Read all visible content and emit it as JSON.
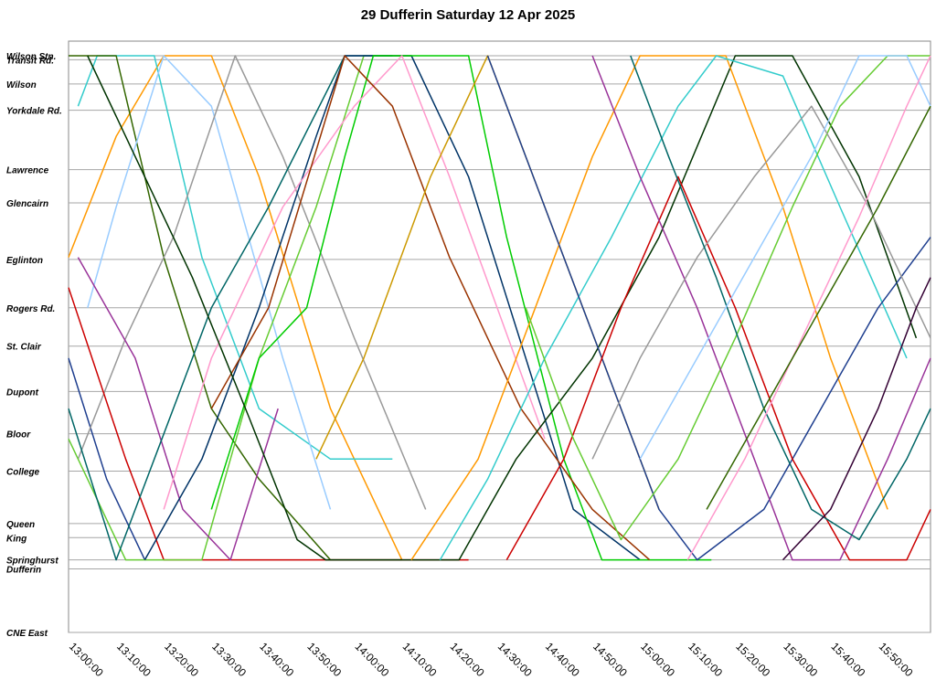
{
  "title": "29 Dufferin Saturday 12 Apr 2025",
  "chart_data": {
    "type": "line",
    "title": "29 Dufferin Saturday 12 Apr 2025",
    "xlabel": "",
    "ylabel": "",
    "x_range_minutes": [
      0,
      181
    ],
    "x_ticks": [
      "13:00:00",
      "13:10:00",
      "13:20:00",
      "13:30:00",
      "13:40:00",
      "13:50:00",
      "14:00:00",
      "14:10:00",
      "14:20:00",
      "14:30:00",
      "14:40:00",
      "14:50:00",
      "15:00:00",
      "15:10:00",
      "15:20:00",
      "15:30:00",
      "15:40:00",
      "15:50:00"
    ],
    "grid": true,
    "stops": [
      {
        "name": "Wilson Stn.",
        "pos": 0.0
      },
      {
        "name": "Transit Rd.",
        "pos": 0.4
      },
      {
        "name": "Wilson",
        "pos": 2.8
      },
      {
        "name": "Yorkdale Rd.",
        "pos": 5.4
      },
      {
        "name": "Lawrence",
        "pos": 11.3
      },
      {
        "name": "Glencairn",
        "pos": 14.6
      },
      {
        "name": "Eglinton",
        "pos": 20.2
      },
      {
        "name": "Rogers Rd.",
        "pos": 25.0
      },
      {
        "name": "St. Clair",
        "pos": 28.8
      },
      {
        "name": "Dupont",
        "pos": 33.3
      },
      {
        "name": "Bloor",
        "pos": 37.5
      },
      {
        "name": "College",
        "pos": 41.2
      },
      {
        "name": "Queen",
        "pos": 46.4
      },
      {
        "name": "King",
        "pos": 47.8
      },
      {
        "name": "Springhurst",
        "pos": 50.0
      },
      {
        "name": "Dufferin",
        "pos": 50.9
      },
      {
        "name": "CNE East",
        "pos": 57.2
      }
    ],
    "series": [
      {
        "color": "#1f3f8f",
        "points": [
          [
            0,
            30
          ],
          [
            8,
            42
          ],
          [
            16,
            50
          ]
        ]
      },
      {
        "color": "#ff9900",
        "points": [
          [
            0,
            20
          ],
          [
            10,
            8
          ],
          [
            20,
            0
          ],
          [
            30,
            0
          ],
          [
            40,
            12
          ],
          [
            55,
            35
          ],
          [
            70,
            50
          ]
        ]
      },
      {
        "color": "#33cccc",
        "points": [
          [
            2,
            5
          ],
          [
            6,
            0
          ],
          [
            18,
            0
          ],
          [
            28,
            20
          ],
          [
            40,
            35
          ],
          [
            55,
            40
          ],
          [
            68,
            40
          ]
        ]
      },
      {
        "color": "#336600",
        "points": [
          [
            0,
            0
          ],
          [
            10,
            0
          ],
          [
            20,
            20
          ],
          [
            30,
            35
          ],
          [
            40,
            42
          ],
          [
            55,
            50
          ],
          [
            70,
            50
          ]
        ]
      },
      {
        "color": "#99ccff",
        "points": [
          [
            4,
            25
          ],
          [
            10,
            15
          ],
          [
            20,
            0
          ],
          [
            30,
            5
          ],
          [
            45,
            30
          ],
          [
            55,
            45
          ]
        ]
      },
      {
        "color": "#999999",
        "points": [
          [
            2,
            40
          ],
          [
            12,
            28
          ],
          [
            22,
            18
          ],
          [
            35,
            0
          ],
          [
            45,
            10
          ],
          [
            60,
            28
          ],
          [
            75,
            45
          ]
        ]
      },
      {
        "color": "#cc0000",
        "points": [
          [
            0,
            23
          ],
          [
            12,
            40
          ],
          [
            20,
            50
          ],
          [
            32,
            50
          ],
          [
            46,
            50
          ],
          [
            68,
            50
          ],
          [
            84,
            50
          ]
        ]
      },
      {
        "color": "#66cc33",
        "points": [
          [
            0,
            38
          ],
          [
            12,
            50
          ],
          [
            28,
            50
          ],
          [
            40,
            30
          ],
          [
            52,
            15
          ],
          [
            62,
            0
          ],
          [
            72,
            0
          ]
        ]
      },
      {
        "color": "#993399",
        "points": [
          [
            2,
            20
          ],
          [
            14,
            30
          ],
          [
            24,
            45
          ],
          [
            34,
            50
          ],
          [
            44,
            35
          ]
        ]
      },
      {
        "color": "#006666",
        "points": [
          [
            0,
            35
          ],
          [
            10,
            50
          ],
          [
            18,
            40
          ],
          [
            30,
            25
          ],
          [
            42,
            15
          ],
          [
            58,
            0
          ],
          [
            68,
            0
          ]
        ]
      },
      {
        "color": "#003366",
        "points": [
          [
            16,
            50
          ],
          [
            28,
            40
          ],
          [
            40,
            25
          ],
          [
            52,
            8
          ],
          [
            58,
            0
          ],
          [
            72,
            0
          ],
          [
            84,
            12
          ],
          [
            96,
            30
          ],
          [
            106,
            45
          ],
          [
            120,
            50
          ]
        ]
      },
      {
        "color": "#00cc00",
        "points": [
          [
            30,
            45
          ],
          [
            40,
            30
          ],
          [
            50,
            25
          ],
          [
            58,
            10
          ],
          [
            64,
            0
          ],
          [
            84,
            0
          ],
          [
            92,
            18
          ],
          [
            104,
            40
          ],
          [
            112,
            50
          ],
          [
            135,
            50
          ]
        ]
      },
      {
        "color": "#ff99cc",
        "points": [
          [
            20,
            45
          ],
          [
            30,
            30
          ],
          [
            45,
            15
          ],
          [
            60,
            5
          ],
          [
            70,
            0
          ],
          [
            80,
            12
          ],
          [
            90,
            25
          ],
          [
            100,
            38
          ]
        ]
      },
      {
        "color": "#993300",
        "points": [
          [
            30,
            35
          ],
          [
            42,
            25
          ],
          [
            58,
            0
          ],
          [
            68,
            5
          ],
          [
            80,
            20
          ],
          [
            95,
            35
          ],
          [
            110,
            45
          ],
          [
            122,
            50
          ]
        ]
      },
      {
        "color": "#cc9900",
        "points": [
          [
            52,
            40
          ],
          [
            62,
            30
          ],
          [
            76,
            12
          ],
          [
            88,
            0
          ],
          [
            100,
            15
          ],
          [
            112,
            30
          ],
          [
            124,
            45
          ]
        ]
      },
      {
        "color": "#003300",
        "points": [
          [
            4,
            0
          ],
          [
            14,
            10
          ],
          [
            26,
            22
          ],
          [
            38,
            36
          ],
          [
            48,
            48
          ],
          [
            54,
            50
          ],
          [
            82,
            50
          ],
          [
            94,
            40
          ],
          [
            110,
            30
          ],
          [
            124,
            18
          ],
          [
            140,
            0
          ],
          [
            152,
            0
          ],
          [
            166,
            12
          ],
          [
            178,
            28
          ]
        ]
      },
      {
        "color": "#ff9900",
        "points": [
          [
            72,
            50
          ],
          [
            86,
            40
          ],
          [
            98,
            25
          ],
          [
            110,
            10
          ],
          [
            120,
            0
          ],
          [
            138,
            0
          ],
          [
            150,
            15
          ],
          [
            160,
            30
          ],
          [
            172,
            45
          ]
        ]
      },
      {
        "color": "#33cccc",
        "points": [
          [
            78,
            50
          ],
          [
            88,
            42
          ],
          [
            100,
            30
          ],
          [
            114,
            18
          ],
          [
            128,
            5
          ],
          [
            136,
            0
          ],
          [
            150,
            2
          ],
          [
            162,
            15
          ],
          [
            176,
            30
          ]
        ]
      },
      {
        "color": "#1f3f8f",
        "points": [
          [
            88,
            0
          ],
          [
            100,
            15
          ],
          [
            112,
            30
          ],
          [
            124,
            45
          ],
          [
            132,
            50
          ],
          [
            146,
            45
          ],
          [
            158,
            35
          ],
          [
            170,
            25
          ],
          [
            181,
            18
          ]
        ]
      },
      {
        "color": "#cc0000",
        "points": [
          [
            92,
            50
          ],
          [
            104,
            40
          ],
          [
            116,
            25
          ],
          [
            128,
            12
          ],
          [
            140,
            25
          ],
          [
            152,
            40
          ],
          [
            164,
            50
          ],
          [
            176,
            50
          ],
          [
            181,
            45
          ]
        ]
      },
      {
        "color": "#66cc33",
        "points": [
          [
            96,
            25
          ],
          [
            106,
            38
          ],
          [
            116,
            48
          ],
          [
            128,
            40
          ],
          [
            140,
            28
          ],
          [
            152,
            15
          ],
          [
            162,
            5
          ],
          [
            172,
            0
          ],
          [
            181,
            0
          ]
        ]
      },
      {
        "color": "#993399",
        "points": [
          [
            110,
            0
          ],
          [
            120,
            12
          ],
          [
            132,
            25
          ],
          [
            144,
            40
          ],
          [
            152,
            50
          ],
          [
            162,
            50
          ],
          [
            172,
            40
          ],
          [
            181,
            30
          ]
        ]
      },
      {
        "color": "#999999",
        "points": [
          [
            110,
            40
          ],
          [
            120,
            30
          ],
          [
            132,
            20
          ],
          [
            144,
            12
          ],
          [
            156,
            5
          ],
          [
            168,
            15
          ],
          [
            181,
            28
          ]
        ]
      },
      {
        "color": "#006666",
        "points": [
          [
            118,
            0
          ],
          [
            126,
            10
          ],
          [
            136,
            22
          ],
          [
            146,
            35
          ],
          [
            156,
            45
          ],
          [
            166,
            48
          ],
          [
            176,
            40
          ],
          [
            181,
            35
          ]
        ]
      },
      {
        "color": "#99ccff",
        "points": [
          [
            120,
            40
          ],
          [
            132,
            30
          ],
          [
            144,
            20
          ],
          [
            156,
            10
          ],
          [
            166,
            0
          ],
          [
            176,
            0
          ],
          [
            181,
            5
          ]
        ]
      },
      {
        "color": "#ff99cc",
        "points": [
          [
            130,
            50
          ],
          [
            142,
            40
          ],
          [
            154,
            28
          ],
          [
            166,
            16
          ],
          [
            176,
            5
          ],
          [
            181,
            0
          ]
        ]
      },
      {
        "color": "#336600",
        "points": [
          [
            134,
            45
          ],
          [
            146,
            35
          ],
          [
            158,
            25
          ],
          [
            170,
            15
          ],
          [
            181,
            5
          ]
        ]
      },
      {
        "color": "#330033",
        "points": [
          [
            150,
            50
          ],
          [
            160,
            45
          ],
          [
            170,
            35
          ],
          [
            178,
            25
          ],
          [
            181,
            22
          ]
        ]
      }
    ]
  }
}
